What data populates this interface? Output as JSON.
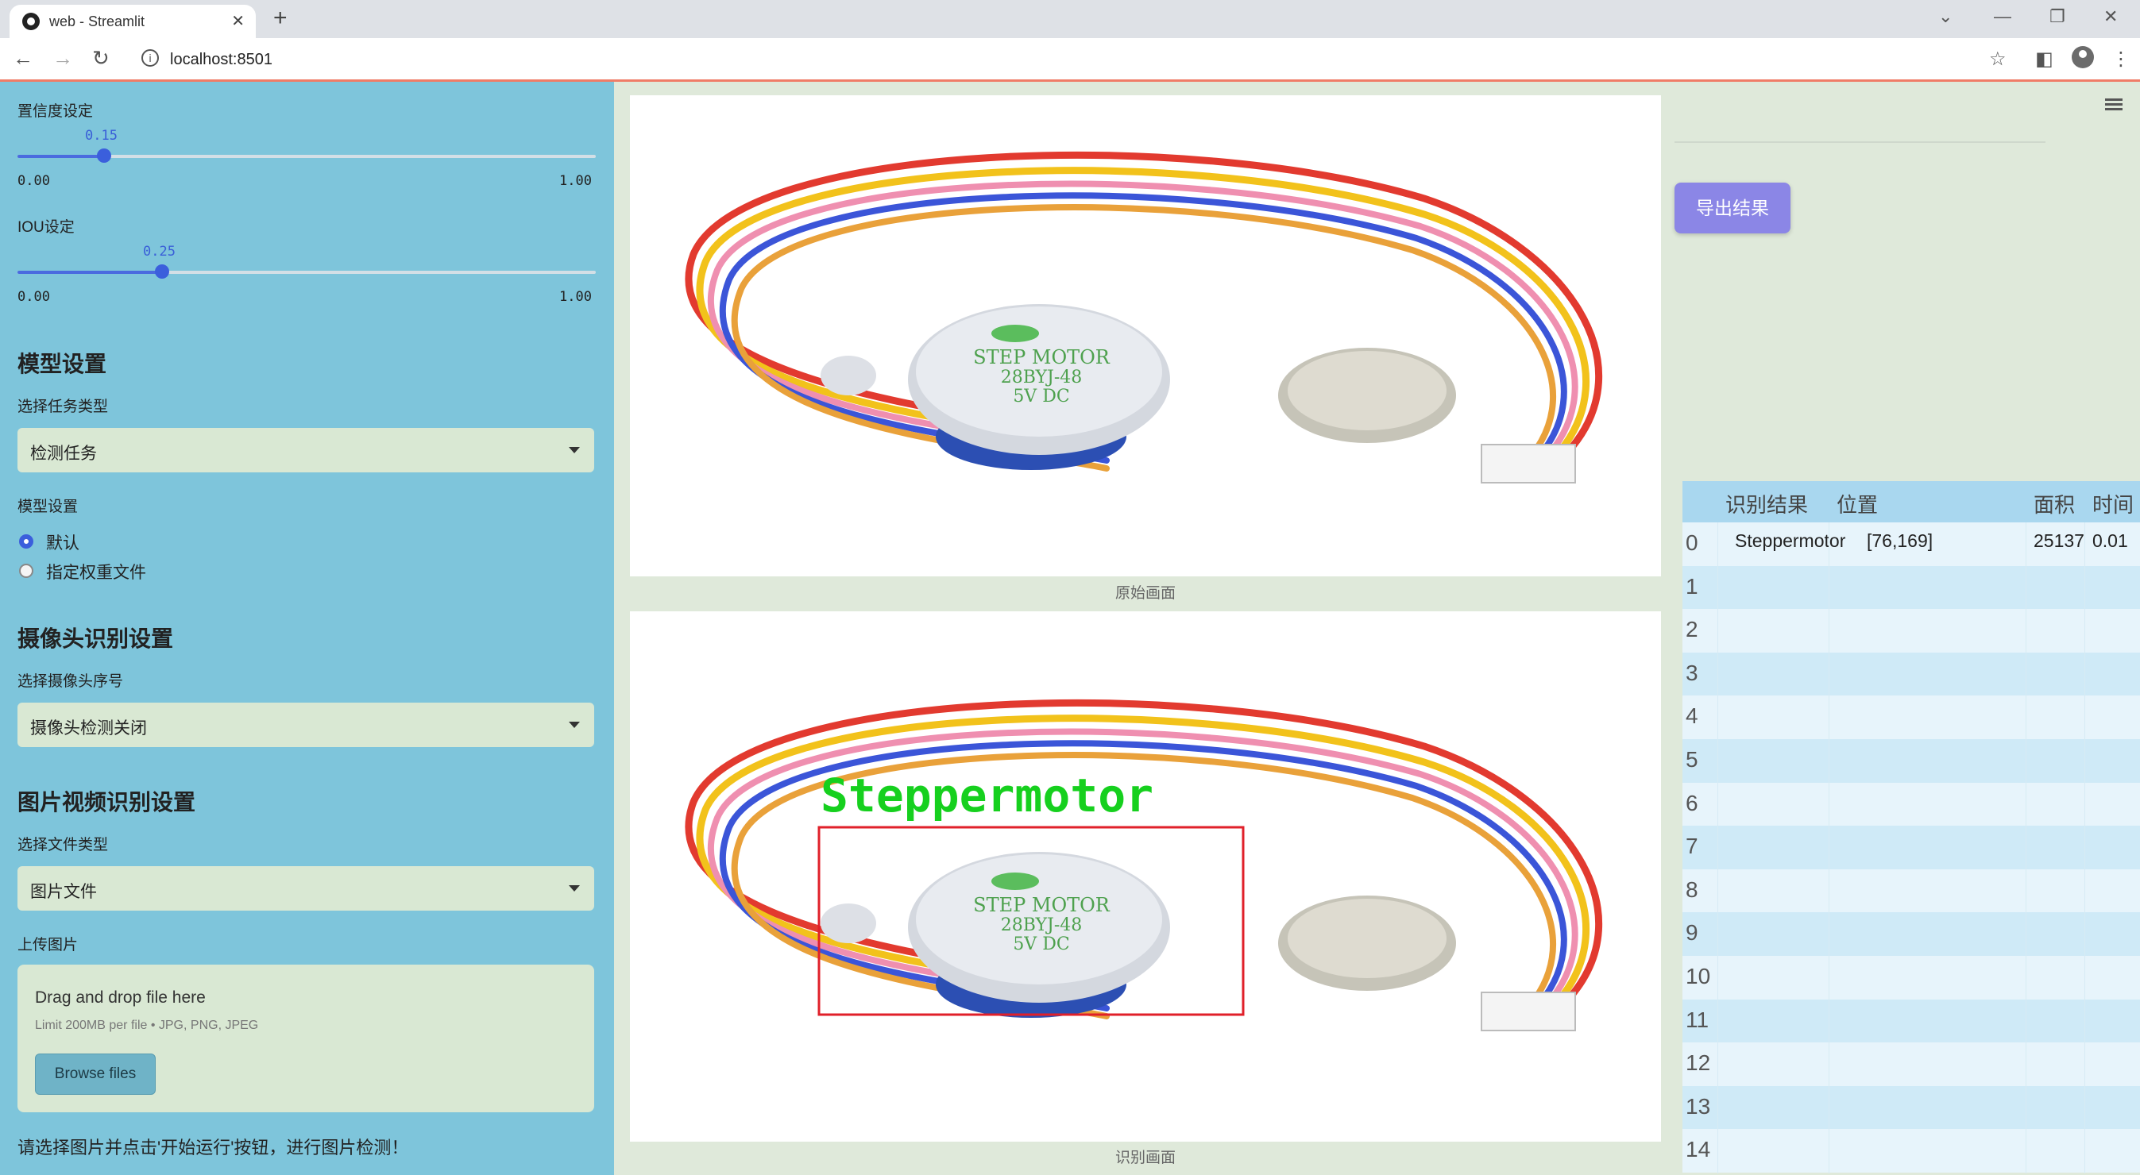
{
  "browser": {
    "tab_title": "web - Streamlit",
    "url": "localhost:8501"
  },
  "sidebar": {
    "confidence": {
      "label": "置信度设定",
      "value": "0.15",
      "min": "0.00",
      "max": "1.00",
      "fraction": 0.15
    },
    "iou": {
      "label": "IOU设定",
      "value": "0.25",
      "min": "0.00",
      "max": "1.00",
      "fraction": 0.25
    },
    "model_heading": "模型设置",
    "task_type_label": "选择任务类型",
    "task_type_value": "检测任务",
    "model_setting_label": "模型设置",
    "model_options": [
      "默认",
      "指定权重文件"
    ],
    "model_selected": 0,
    "camera_heading": "摄像头识别设置",
    "camera_label": "选择摄像头序号",
    "camera_value": "摄像头检测关闭",
    "media_heading": "图片视频识别设置",
    "file_type_label": "选择文件类型",
    "file_type_value": "图片文件",
    "upload_label": "上传图片",
    "upload_drag": "Drag and drop file here",
    "upload_limit": "Limit 200MB per file • JPG, PNG, JPEG",
    "browse_label": "Browse files",
    "footer_note": "请选择图片并点击'开始运行'按钮，进行图片检测！"
  },
  "main": {
    "original_caption": "原始画面",
    "detected_caption": "识别画面",
    "detection_label": "Steppermotor",
    "motor_text": [
      "STEP   MOTOR",
      "28BYJ-48",
      "5V    DC"
    ]
  },
  "right": {
    "export_label": "导出结果",
    "table": {
      "headers": [
        "识别结果",
        "位置",
        "面积",
        "时间"
      ],
      "row_indices": [
        "0",
        "1",
        "2",
        "3",
        "4",
        "5",
        "6",
        "7",
        "8",
        "9",
        "10",
        "11",
        "12",
        "13",
        "14"
      ],
      "rows": [
        {
          "result": "Steppermotor",
          "position": "[76,169]",
          "area": "25137",
          "time": "0.01"
        }
      ]
    }
  },
  "colors": {
    "sidebar_bg": "#7ec5db",
    "accent": "#3b5fdc",
    "export_button": "#8b86e6",
    "detection_box": "#e0202a",
    "detection_text": "#16d01e"
  }
}
